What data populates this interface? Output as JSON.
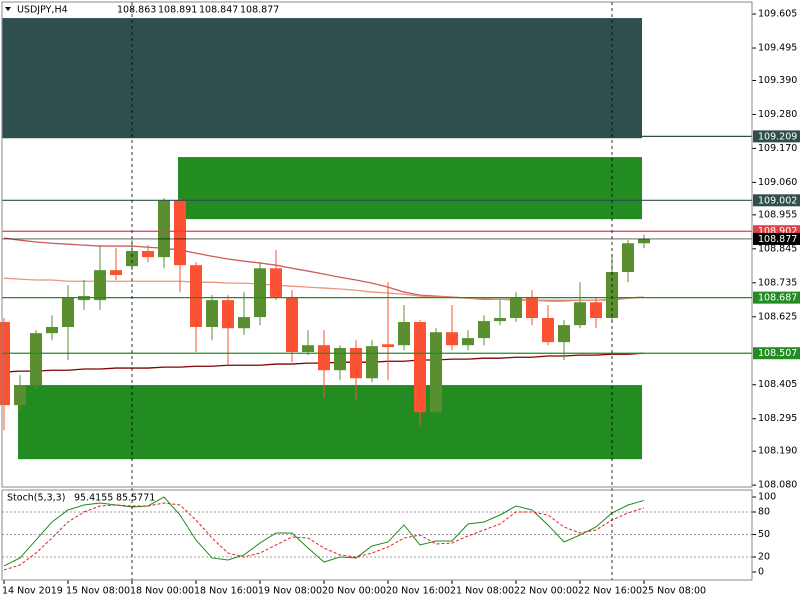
{
  "chart_data": [
    {
      "type": "candlestick",
      "title": "USDJPY,H4",
      "categories": [
        "14 Nov 2019",
        null,
        null,
        null,
        "15 Nov 08:00",
        null,
        null,
        null,
        "18 Nov 00:00",
        null,
        null,
        null,
        "18 Nov 16:00",
        null,
        null,
        null,
        "19 Nov 08:00",
        null,
        null,
        null,
        "20 Nov 00:00",
        null,
        null,
        null,
        "20 Nov 16:00",
        null,
        null,
        null,
        "21 Nov 08:00",
        null,
        null,
        null,
        "22 Nov 00:00",
        null,
        null,
        null,
        "22 Nov 16:00",
        null,
        null,
        null,
        "25 Nov 08:00"
      ],
      "open": [
        108.608,
        108.339,
        108.404,
        108.572,
        108.592,
        108.679,
        108.679,
        108.776,
        108.789,
        108.838,
        108.818,
        109.003,
        108.792,
        108.592,
        108.679,
        108.588,
        108.624,
        108.782,
        108.689,
        108.511,
        108.533,
        108.452,
        108.524,
        108.426,
        108.536,
        108.533,
        108.608,
        108.316,
        108.575,
        108.533,
        108.556,
        108.611,
        108.621,
        108.689,
        108.621,
        108.543,
        108.598,
        108.672,
        108.621,
        108.77,
        108.863
      ],
      "high": [
        108.621,
        108.436,
        108.582,
        108.63,
        108.727,
        108.744,
        108.857,
        108.847,
        108.873,
        108.857,
        109.009,
        109.009,
        108.802,
        108.695,
        108.695,
        108.705,
        108.802,
        108.841,
        108.711,
        108.582,
        108.582,
        108.533,
        108.549,
        108.549,
        108.737,
        108.663,
        108.614,
        108.588,
        108.663,
        108.582,
        108.63,
        108.679,
        108.705,
        108.711,
        108.663,
        108.614,
        108.737,
        108.685,
        108.825,
        108.873,
        108.891
      ],
      "low": [
        108.258,
        108.323,
        108.388,
        108.549,
        108.485,
        108.647,
        108.647,
        108.744,
        108.776,
        108.802,
        108.782,
        108.705,
        108.511,
        108.549,
        108.468,
        108.566,
        108.598,
        108.679,
        108.478,
        108.501,
        108.362,
        108.42,
        108.355,
        108.413,
        108.42,
        108.517,
        108.274,
        108.316,
        108.517,
        108.517,
        108.533,
        108.598,
        108.608,
        108.598,
        108.533,
        108.485,
        108.588,
        108.588,
        108.608,
        108.737,
        108.847
      ],
      "close": [
        108.339,
        108.404,
        108.572,
        108.592,
        108.689,
        108.692,
        108.776,
        108.76,
        108.838,
        108.818,
        109.003,
        108.792,
        108.592,
        108.679,
        108.588,
        108.624,
        108.782,
        108.689,
        108.511,
        108.533,
        108.452,
        108.524,
        108.426,
        108.53,
        108.527,
        108.608,
        108.316,
        108.575,
        108.533,
        108.556,
        108.611,
        108.621,
        108.689,
        108.621,
        108.543,
        108.598,
        108.672,
        108.621,
        108.77,
        108.863,
        108.877
      ],
      "up_color": "#5a8f30",
      "down_color": "#fa5232",
      "series": [
        {
          "color": "#cd5c5c",
          "values": [
            108.88,
            108.873,
            108.867,
            108.863,
            108.86,
            108.857,
            108.854,
            108.854,
            108.854,
            108.85,
            108.847,
            108.841,
            108.831,
            108.821,
            108.812,
            108.805,
            108.799,
            108.792,
            108.782,
            108.773,
            108.763,
            108.753,
            108.744,
            108.734,
            108.721,
            108.705,
            108.695,
            108.692,
            108.689,
            108.685,
            108.682,
            108.682,
            108.679,
            108.679,
            108.676,
            108.676,
            108.679,
            108.679,
            108.679,
            108.685,
            108.689
          ]
        },
        {
          "color": "#e9967a",
          "values": [
            108.75,
            108.747,
            108.744,
            108.744,
            108.74,
            108.74,
            108.74,
            108.74,
            108.74,
            108.74,
            108.74,
            108.74,
            108.737,
            108.737,
            108.734,
            108.734,
            108.731,
            108.727,
            108.724,
            108.721,
            108.718,
            108.715,
            108.711,
            108.705,
            108.702,
            108.698,
            108.692,
            108.689,
            108.689,
            108.685,
            108.685,
            108.682,
            108.682,
            108.679,
            108.679,
            108.679,
            108.679,
            108.679,
            108.682,
            108.685,
            108.689
          ]
        },
        {
          "color": "#800000",
          "values": [
            108.446,
            108.449,
            108.449,
            108.452,
            108.452,
            108.456,
            108.456,
            108.459,
            108.459,
            108.459,
            108.462,
            108.462,
            108.465,
            108.465,
            108.468,
            108.468,
            108.468,
            108.472,
            108.472,
            108.475,
            108.475,
            108.478,
            108.478,
            108.478,
            108.481,
            108.481,
            108.485,
            108.485,
            108.488,
            108.488,
            108.491,
            108.491,
            108.494,
            108.494,
            108.498,
            108.498,
            108.501,
            108.501,
            108.504,
            108.504,
            108.507
          ]
        }
      ],
      "zones": [
        {
          "from": 0,
          "to": 40,
          "low": 109.203,
          "high": 109.592,
          "color": "#2f4f4f"
        },
        {
          "from": 11,
          "to": 40,
          "low": 108.941,
          "high": 109.142,
          "color": "#228b22"
        },
        {
          "from": 1,
          "to": 40,
          "low": 108.164,
          "high": 108.404,
          "color": "#228b22"
        }
      ],
      "levels": [
        {
          "value": 109.209,
          "from": 40,
          "color": "#2f4f4f"
        },
        {
          "value": 109.002,
          "from": 0,
          "color": "#2f4f4f"
        },
        {
          "value": 108.902,
          "from": 0,
          "color": "#e0404a"
        },
        {
          "value": 108.877,
          "from": 0,
          "color": "#000000"
        },
        {
          "value": 108.687,
          "from": 0,
          "color": "#228b22"
        },
        {
          "value": 108.507,
          "from": 0,
          "color": "#228b22"
        }
      ],
      "ylim": [
        108.074,
        109.644
      ],
      "yticks": [
        109.605,
        109.495,
        {
          "value": 109.39,
          "label": "109.390"
        },
        {
          "value": 109.28,
          "label": "109.280"
        },
        {
          "value": 109.17,
          "label": "109.170"
        },
        {
          "value": 109.06,
          "label": "109.060"
        },
        108.955,
        108.845,
        108.735,
        108.625,
        108.405,
        108.295,
        {
          "value": 108.19,
          "label": "108.190"
        },
        {
          "value": 108.08,
          "label": "108.080"
        }
      ]
    },
    {
      "type": "line",
      "title": "Stoch(5,3,3)",
      "series": [
        {
          "color": "#1e8c1e",
          "dash": false,
          "values": [
            8,
            18.7,
            42.7,
            66.7,
            82.7,
            89.3,
            92,
            89.3,
            86.7,
            88,
            100,
            76,
            42.7,
            18.7,
            16,
            22.7,
            38.7,
            52,
            52,
            32,
            13.3,
            20,
            18.7,
            34.7,
            40,
            62.7,
            36,
            41.3,
            41.3,
            64,
            66.7,
            76,
            88,
            82.7,
            62.7,
            40,
            49.3,
            60,
            78.7,
            89.3,
            95.4155
          ]
        },
        {
          "color": "#e02020",
          "dash": true,
          "values": [
            2.7,
            9.3,
            25.3,
            45.3,
            66.7,
            80,
            88,
            89.3,
            88,
            88,
            92,
            89.3,
            69.3,
            45.3,
            25.3,
            20,
            25.3,
            36,
            46.7,
            45.3,
            32,
            22.7,
            20,
            25.3,
            33.3,
            45.3,
            49.3,
            37.3,
            38.7,
            48,
            56,
            64,
            80,
            80,
            76,
            60,
            52,
            56,
            69.3,
            78.7,
            85.5771
          ]
        }
      ],
      "levels": [
        80,
        50,
        20
      ],
      "ylim": [
        -10.7,
        108
      ],
      "yticks": [
        100,
        80,
        50,
        20,
        0
      ]
    }
  ]
}
